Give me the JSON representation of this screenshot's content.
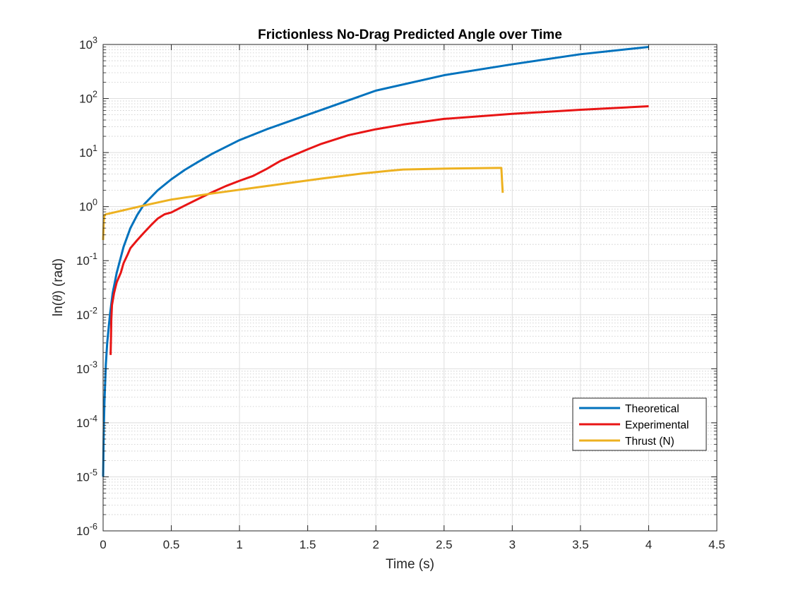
{
  "chart_data": {
    "type": "line",
    "title": "Frictionless No-Drag Predicted Angle over Time",
    "xlabel": "Time (s)",
    "ylabel_prefix": "ln(",
    "ylabel_symbol": "θ",
    "ylabel_suffix": ") (rad)",
    "xlim": [
      0,
      4.5
    ],
    "ylim": [
      1e-06,
      1000
    ],
    "yscale": "log",
    "grid": true,
    "minor_grid": true,
    "legend_position": "lower-right",
    "x_ticks": [
      0,
      0.5,
      1,
      1.5,
      2,
      2.5,
      3,
      3.5,
      4,
      4.5
    ],
    "x_tick_labels": [
      "0",
      "0.5",
      "1",
      "1.5",
      "2",
      "2.5",
      "3",
      "3.5",
      "4",
      "4.5"
    ],
    "y_tick_exponents": [
      -6,
      -5,
      -4,
      -3,
      -2,
      -1,
      0,
      1,
      2,
      3
    ],
    "y_tick_base": "10",
    "series": [
      {
        "name": "Theoretical",
        "color": "#0072BD",
        "points": [
          [
            0.0,
            1e-05
          ],
          [
            0.005,
            8e-05
          ],
          [
            0.01,
            0.00025
          ],
          [
            0.02,
            0.0012
          ],
          [
            0.03,
            0.003
          ],
          [
            0.05,
            0.01
          ],
          [
            0.07,
            0.025
          ],
          [
            0.1,
            0.06
          ],
          [
            0.15,
            0.18
          ],
          [
            0.2,
            0.4
          ],
          [
            0.25,
            0.7
          ],
          [
            0.3,
            1.1
          ],
          [
            0.4,
            2.0
          ],
          [
            0.5,
            3.2
          ],
          [
            0.6,
            4.8
          ],
          [
            0.7,
            6.8
          ],
          [
            0.8,
            9.5
          ],
          [
            1.0,
            17
          ],
          [
            1.2,
            27
          ],
          [
            1.5,
            50
          ],
          [
            2.0,
            140
          ],
          [
            2.5,
            270
          ],
          [
            3.0,
            430
          ],
          [
            3.5,
            660
          ],
          [
            4.0,
            900
          ]
        ]
      },
      {
        "name": "Experimental",
        "color": "#E81515",
        "points": [
          [
            0.055,
            0.0018
          ],
          [
            0.058,
            0.004
          ],
          [
            0.06,
            0.008
          ],
          [
            0.065,
            0.015
          ],
          [
            0.08,
            0.025
          ],
          [
            0.1,
            0.04
          ],
          [
            0.13,
            0.06
          ],
          [
            0.15,
            0.09
          ],
          [
            0.18,
            0.13
          ],
          [
            0.2,
            0.17
          ],
          [
            0.25,
            0.24
          ],
          [
            0.3,
            0.33
          ],
          [
            0.35,
            0.45
          ],
          [
            0.4,
            0.6
          ],
          [
            0.45,
            0.72
          ],
          [
            0.5,
            0.78
          ],
          [
            0.6,
            1.05
          ],
          [
            0.7,
            1.4
          ],
          [
            0.8,
            1.85
          ],
          [
            0.9,
            2.4
          ],
          [
            1.0,
            3.0
          ],
          [
            1.1,
            3.7
          ],
          [
            1.2,
            5.0
          ],
          [
            1.3,
            7.0
          ],
          [
            1.4,
            9.0
          ],
          [
            1.5,
            11.5
          ],
          [
            1.6,
            14.5
          ],
          [
            1.8,
            21
          ],
          [
            2.0,
            27
          ],
          [
            2.2,
            33
          ],
          [
            2.5,
            42
          ],
          [
            3.0,
            52
          ],
          [
            3.5,
            62
          ],
          [
            4.0,
            72
          ]
        ]
      },
      {
        "name": "Thrust (N)",
        "color": "#EDB120",
        "points": [
          [
            0.0,
            0.24
          ],
          [
            0.005,
            0.55
          ],
          [
            0.01,
            0.69
          ],
          [
            0.02,
            0.72
          ],
          [
            0.1,
            0.8
          ],
          [
            0.3,
            1.05
          ],
          [
            0.5,
            1.35
          ],
          [
            0.8,
            1.75
          ],
          [
            1.0,
            2.05
          ],
          [
            1.3,
            2.6
          ],
          [
            1.6,
            3.3
          ],
          [
            1.9,
            4.1
          ],
          [
            2.1,
            4.6
          ],
          [
            2.2,
            4.85
          ],
          [
            2.5,
            5.05
          ],
          [
            2.9,
            5.2
          ],
          [
            2.92,
            5.2
          ],
          [
            2.925,
            3.0
          ],
          [
            2.93,
            1.8
          ]
        ]
      }
    ]
  }
}
